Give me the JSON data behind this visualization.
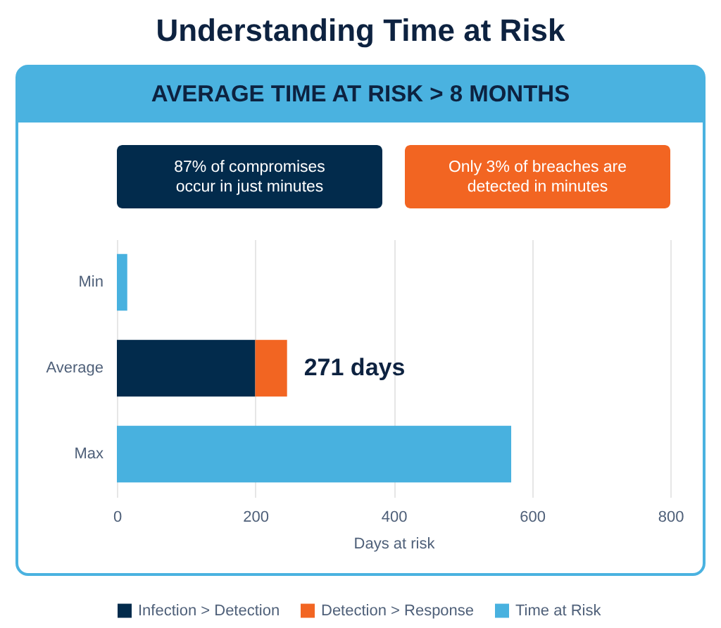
{
  "chart_data": {
    "type": "bar",
    "orientation": "horizontal",
    "stacked": true,
    "title": "Understanding Time at Risk",
    "subtitle": "AVERAGE TIME AT RISK > 8 MONTHS",
    "categories": [
      "Min",
      "Average",
      "Max"
    ],
    "series": [
      {
        "name": "Infection > Detection",
        "color": "#022b4c",
        "values": [
          null,
          200,
          null
        ]
      },
      {
        "name": "Detection > Response",
        "color": "#f26522",
        "values": [
          null,
          46,
          null
        ]
      },
      {
        "name": "Time at Risk",
        "color": "#48b1df",
        "values": [
          15,
          null,
          570
        ]
      }
    ],
    "xlim": [
      0,
      800
    ],
    "xticks": [
      0,
      200,
      400,
      600,
      800
    ],
    "xlabel": "Days at risk",
    "annotations": [
      "87% of compromises\noccur in just minutes",
      "Only 3% of breaches are\ndetected in minutes",
      {
        "text": "271 days",
        "x": 246,
        "y": "Average"
      }
    ],
    "grid": "x",
    "legend": "bottom"
  }
}
